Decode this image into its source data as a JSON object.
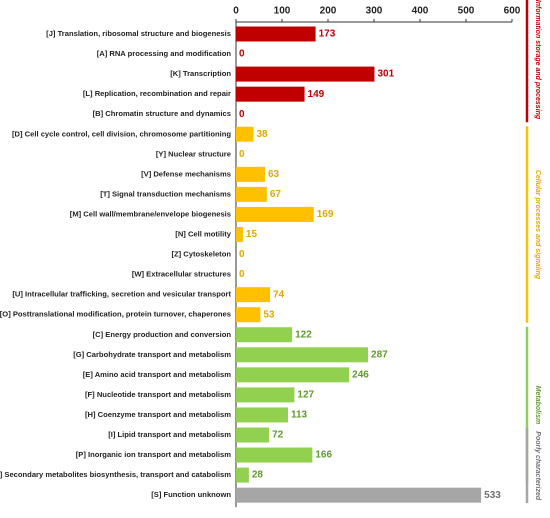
{
  "chart_data": {
    "type": "bar",
    "orientation": "horizontal",
    "categories": [
      "[J] Translation, ribosomal structure and biogenesis",
      "[A] RNA processing and modification",
      "[K] Transcription",
      "[L] Replication, recombination and repair",
      "[B] Chromatin structure and dynamics",
      "[D] Cell cycle control, cell division, chromosome partitioning",
      "[Y] Nuclear structure",
      "[V] Defense mechanisms",
      "[T] Signal transduction mechanisms",
      "[M] Cell wall/membrane/envelope biogenesis",
      "[N] Cell motility",
      "[Z] Cytoskeleton",
      "[W] Extracellular structures",
      "[U] Intracellular trafficking, secretion and vesicular transport",
      "[O] Posttranslational modification, protein turnover, chaperones",
      "[C] Energy production and conversion",
      "[G] Carbohydrate transport and metabolism",
      "[E] Amino acid transport and metabolism",
      "[F] Nucleotide transport and metabolism",
      "[H] Coenzyme transport and metabolism",
      "[I] Lipid transport and metabolism",
      "[P] Inorganic ion transport and metabolism",
      "[Q] Secondary metabolites biosynthesis, transport and catabolism",
      "[S] Function unknown"
    ],
    "series": [
      {
        "name": "Information storage and processing",
        "color": "#c00000",
        "label_color": "#c00000",
        "values": [
          173,
          0,
          301,
          149,
          0,
          null,
          null,
          null,
          null,
          null,
          null,
          null,
          null,
          null,
          null,
          null,
          null,
          null,
          null,
          null,
          null,
          null,
          null,
          null
        ]
      },
      {
        "name": "Cellular processes and signaling",
        "color": "#ffc000",
        "label_color": "#e0a800",
        "values": [
          null,
          null,
          null,
          null,
          null,
          38,
          0,
          63,
          67,
          169,
          15,
          0,
          0,
          74,
          53,
          null,
          null,
          null,
          null,
          null,
          null,
          null,
          null,
          null
        ]
      },
      {
        "name": "Metabolism",
        "color": "#92d050",
        "label_color": "#5f9a2c",
        "values": [
          null,
          null,
          null,
          null,
          null,
          null,
          null,
          null,
          null,
          null,
          null,
          null,
          null,
          null,
          null,
          122,
          287,
          246,
          127,
          113,
          72,
          166,
          28,
          null
        ]
      },
      {
        "name": "Poorly characterized",
        "color": "#a6a6a6",
        "label_color": "#707070",
        "values": [
          null,
          null,
          null,
          null,
          null,
          null,
          null,
          null,
          null,
          null,
          null,
          null,
          null,
          null,
          null,
          null,
          null,
          null,
          null,
          null,
          null,
          null,
          null,
          533
        ]
      }
    ],
    "xlim": [
      0,
      600
    ],
    "xticks": [
      0,
      100,
      200,
      300,
      400,
      500,
      600
    ]
  }
}
